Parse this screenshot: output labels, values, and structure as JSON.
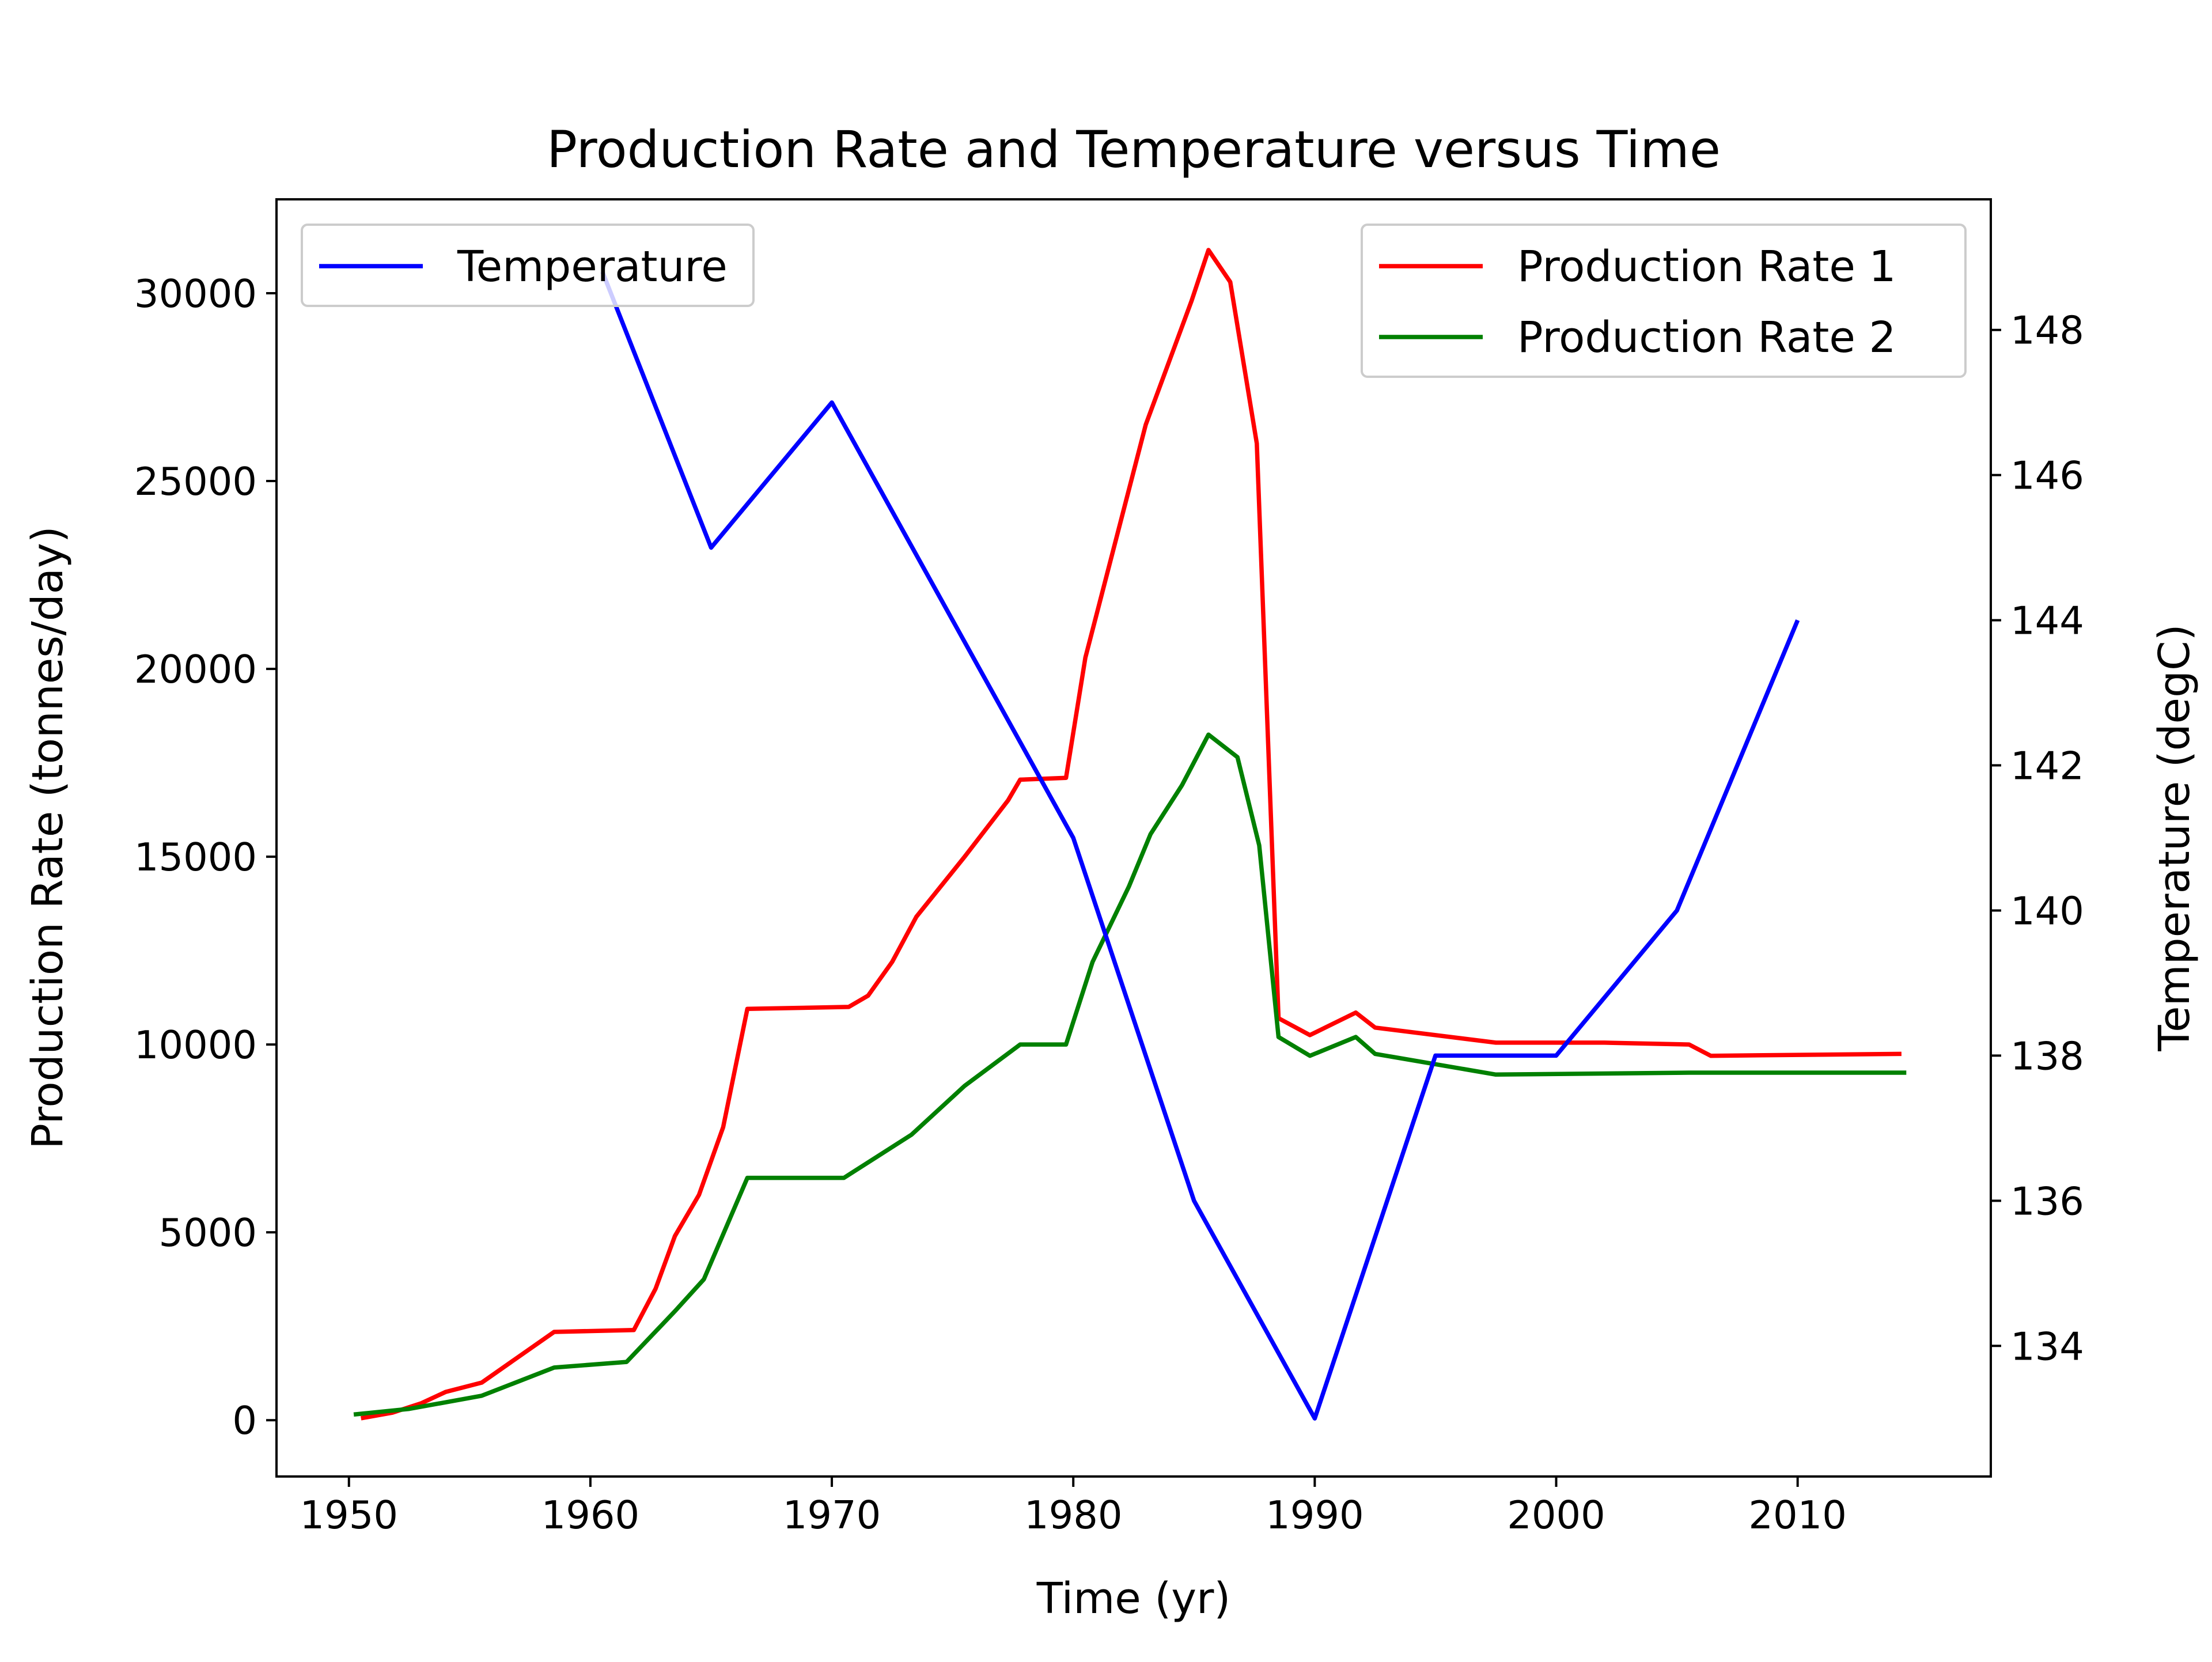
{
  "chart_data": {
    "type": "line",
    "title": "Production Rate and Temperature versus Time",
    "xlabel": "Time (yr)",
    "ylabel_left": "Production Rate (tonnes/day)",
    "ylabel_right": "Temperature (degC)",
    "xlim": [
      1947,
      2018
    ],
    "ylim_left": [
      -1500,
      32500
    ],
    "ylim_right": [
      132.2,
      149.8
    ],
    "xticks": [
      1950,
      1960,
      1970,
      1980,
      1990,
      2000,
      2010
    ],
    "yticks_left": [
      0,
      5000,
      10000,
      15000,
      20000,
      25000,
      30000
    ],
    "yticks_right": [
      134,
      136,
      138,
      140,
      142,
      144,
      146,
      148
    ],
    "legends": [
      {
        "position": "upper-left",
        "entries": [
          "Temperature"
        ]
      },
      {
        "position": "upper-right",
        "entries": [
          "Production Rate 1",
          "Production Rate 2"
        ]
      }
    ],
    "series": [
      {
        "name": "Production Rate 1",
        "axis": "left",
        "color": "#ff0000",
        "points": [
          [
            1950.5,
            50
          ],
          [
            1951.8,
            200
          ],
          [
            1953,
            450
          ],
          [
            1954,
            750
          ],
          [
            1955.5,
            1000
          ],
          [
            1957.5,
            1900
          ],
          [
            1958.5,
            2350
          ],
          [
            1961.8,
            2400
          ],
          [
            1962.7,
            3500
          ],
          [
            1963.5,
            4900
          ],
          [
            1964.5,
            6000
          ],
          [
            1965.5,
            7800
          ],
          [
            1966.5,
            10950
          ],
          [
            1970.7,
            11000
          ],
          [
            1971.5,
            11300
          ],
          [
            1972.5,
            12200
          ],
          [
            1973.5,
            13400
          ],
          [
            1975.5,
            15000
          ],
          [
            1977.3,
            16500
          ],
          [
            1977.8,
            17050
          ],
          [
            1979.7,
            17100
          ],
          [
            1980.5,
            20300
          ],
          [
            1983,
            26500
          ],
          [
            1984.9,
            29800
          ],
          [
            1985.6,
            31150
          ],
          [
            1986.5,
            30300
          ],
          [
            1987.6,
            26000
          ],
          [
            1988.5,
            10700
          ],
          [
            1989.8,
            10250
          ],
          [
            1991.7,
            10850
          ],
          [
            1992.5,
            10450
          ],
          [
            1997.5,
            10050
          ],
          [
            2002,
            10050
          ],
          [
            2005.5,
            10000
          ],
          [
            2006.4,
            9700
          ],
          [
            2014.3,
            9750
          ]
        ]
      },
      {
        "name": "Production Rate 2",
        "axis": "left",
        "color": "#008000",
        "points": [
          [
            1950.2,
            150
          ],
          [
            1952.5,
            300
          ],
          [
            1955.5,
            650
          ],
          [
            1958.5,
            1400
          ],
          [
            1961.5,
            1550
          ],
          [
            1963.5,
            2900
          ],
          [
            1964.7,
            3750
          ],
          [
            1966.5,
            6450
          ],
          [
            1970.5,
            6450
          ],
          [
            1973.3,
            7600
          ],
          [
            1975.5,
            8900
          ],
          [
            1977.8,
            10000
          ],
          [
            1979.7,
            10000
          ],
          [
            1980.8,
            12200
          ],
          [
            1982.3,
            14200
          ],
          [
            1983.2,
            15600
          ],
          [
            1984.5,
            16900
          ],
          [
            1985.6,
            18250
          ],
          [
            1986.8,
            17650
          ],
          [
            1987.7,
            15300
          ],
          [
            1988.5,
            10200
          ],
          [
            1989.8,
            9700
          ],
          [
            1991.7,
            10200
          ],
          [
            1992.5,
            9750
          ],
          [
            1997.5,
            9200
          ],
          [
            2005.5,
            9250
          ],
          [
            2014.5,
            9250
          ]
        ]
      },
      {
        "name": "Temperature",
        "axis": "right",
        "color": "#0000ff",
        "points": [
          [
            1960.5,
            148.8
          ],
          [
            1965,
            145
          ],
          [
            1970,
            147
          ],
          [
            1980,
            141
          ],
          [
            1985,
            136
          ],
          [
            1990,
            133
          ],
          [
            1995,
            138
          ],
          [
            2000,
            138
          ],
          [
            2005,
            140
          ],
          [
            2010,
            144
          ]
        ]
      }
    ]
  }
}
